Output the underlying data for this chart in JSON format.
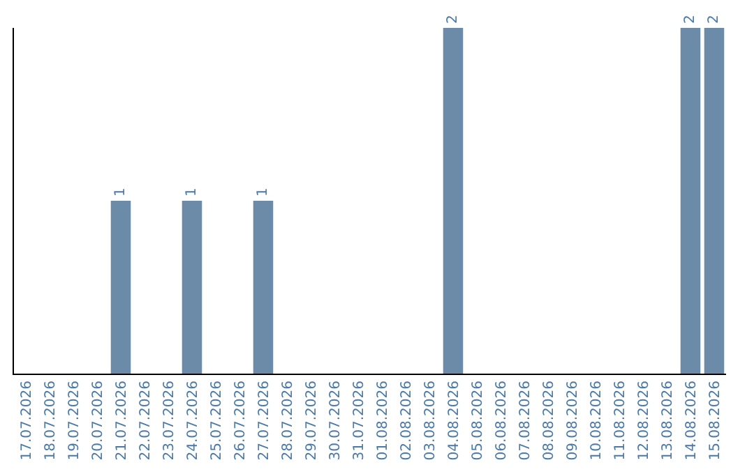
{
  "chart_data": {
    "type": "bar",
    "categories": [
      "17.07.2026",
      "18.07.2026",
      "19.07.2026",
      "20.07.2026",
      "21.07.2026",
      "22.07.2026",
      "23.07.2026",
      "24.07.2026",
      "25.07.2026",
      "26.07.2026",
      "27.07.2026",
      "28.07.2026",
      "29.07.2026",
      "30.07.2026",
      "31.07.2026",
      "01.08.2026",
      "02.08.2026",
      "03.08.2026",
      "04.08.2026",
      "05.08.2026",
      "06.08.2026",
      "07.08.2026",
      "08.08.2026",
      "09.08.2026",
      "10.08.2026",
      "11.08.2026",
      "12.08.2026",
      "13.08.2026",
      "14.08.2026",
      "15.08.2026"
    ],
    "values": [
      0,
      0,
      0,
      0,
      1,
      0,
      0,
      1,
      0,
      0,
      1,
      0,
      0,
      0,
      0,
      0,
      0,
      0,
      2,
      0,
      0,
      0,
      0,
      0,
      0,
      0,
      0,
      0,
      2,
      2
    ],
    "value_labels": [
      null,
      null,
      null,
      null,
      "1",
      null,
      null,
      "1",
      null,
      null,
      "1",
      null,
      null,
      null,
      null,
      null,
      null,
      null,
      "2",
      null,
      null,
      null,
      null,
      null,
      null,
      null,
      null,
      null,
      "2",
      "2"
    ],
    "color": "#6c8ba8",
    "grid": false,
    "legend": false
  }
}
